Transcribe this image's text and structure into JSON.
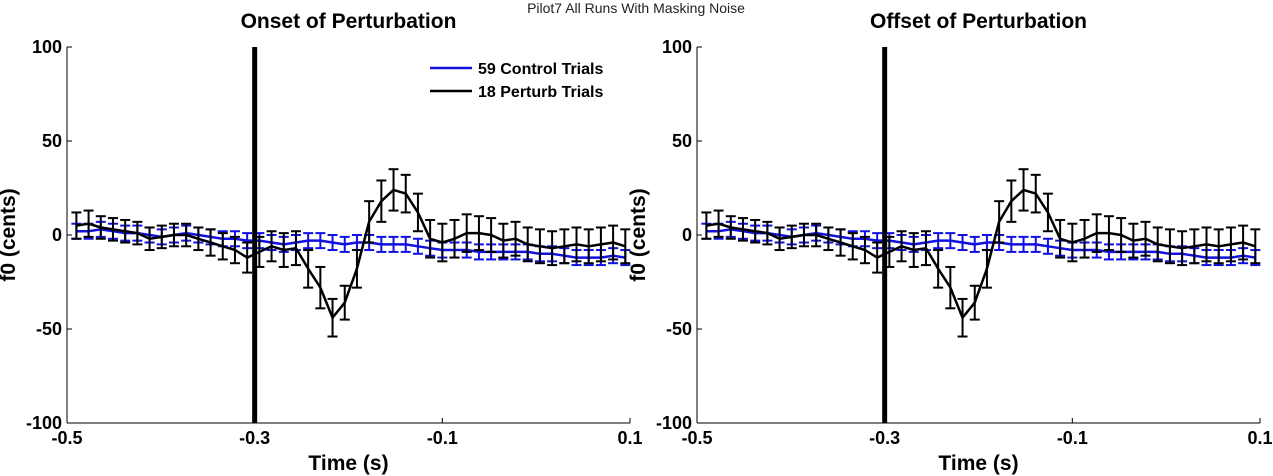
{
  "figure_title": "Pilot7 All Runs With Masking Noise",
  "colors": {
    "control": "#1010e0",
    "perturb": "#000000",
    "marker_line": "#000000",
    "axis": "#000000"
  },
  "chart_data": [
    {
      "type": "line",
      "title": "Onset of Perturbation",
      "xlabel": "Time (s)",
      "ylabel": "f0 (cents)",
      "xlim": [
        -0.5,
        0.1
      ],
      "ylim": [
        -100,
        100
      ],
      "xticks": [
        -0.5,
        -0.3,
        -0.1,
        0.1
      ],
      "xtick_labels": [
        "-0.5",
        "-0.3",
        "-0.1",
        "0.1"
      ],
      "yticks": [
        -100,
        -50,
        0,
        50,
        100
      ],
      "ytick_labels": [
        "-100",
        "-50",
        "0",
        "50",
        "100"
      ],
      "vline_x": -0.3,
      "legend_position": "top-right",
      "grid": false,
      "x": [
        -0.49,
        -0.477,
        -0.464,
        -0.451,
        -0.438,
        -0.425,
        -0.412,
        -0.399,
        -0.386,
        -0.373,
        -0.36,
        -0.347,
        -0.334,
        -0.321,
        -0.308,
        -0.295,
        -0.282,
        -0.269,
        -0.256,
        -0.243,
        -0.23,
        -0.217,
        -0.204,
        -0.191,
        -0.178,
        -0.165,
        -0.152,
        -0.139,
        -0.126,
        -0.113,
        -0.1,
        -0.087,
        -0.074,
        -0.061,
        -0.048,
        -0.035,
        -0.022,
        -0.009,
        0.004,
        0.017,
        0.03,
        0.043,
        0.056,
        0.069,
        0.082,
        0.095
      ],
      "series": [
        {
          "name": "59 Control Trials",
          "color": "#1010e0",
          "values": [
            2,
            2,
            3,
            2,
            1,
            1,
            0,
            -1,
            0,
            1,
            0,
            -1,
            -2,
            -2,
            -3,
            -3,
            -4,
            -5,
            -4,
            -3,
            -3,
            -4,
            -5,
            -4,
            -4,
            -5,
            -5,
            -5,
            -6,
            -7,
            -8,
            -8,
            -8,
            -9,
            -9,
            -9,
            -9,
            -9,
            -10,
            -10,
            -11,
            -12,
            -12,
            -12,
            -11,
            -12
          ],
          "errors": [
            4,
            4,
            4,
            4,
            4,
            4,
            4,
            4,
            4,
            4,
            4,
            4,
            4,
            4,
            4,
            4,
            4,
            4,
            4,
            4,
            4,
            4,
            4,
            4,
            4,
            4,
            4,
            4,
            4,
            4,
            4,
            4,
            4,
            4,
            4,
            4,
            4,
            4,
            4,
            4,
            4,
            4,
            4,
            4,
            4,
            4
          ]
        },
        {
          "name": "18 Perturb Trials",
          "color": "#000000",
          "values": [
            5,
            6,
            4,
            3,
            2,
            1,
            -2,
            -1,
            0,
            0,
            -2,
            -4,
            -6,
            -8,
            -12,
            -9,
            -6,
            -8,
            -7,
            -18,
            -28,
            -44,
            -36,
            -18,
            7,
            18,
            24,
            22,
            12,
            -2,
            -4,
            -2,
            1,
            1,
            0,
            -3,
            -2,
            -5,
            -6,
            -7,
            -6,
            -5,
            -6,
            -5,
            -4,
            -6
          ],
          "errors": [
            7,
            7,
            6,
            6,
            6,
            6,
            6,
            6,
            6,
            6,
            6,
            7,
            7,
            7,
            8,
            8,
            8,
            9,
            9,
            10,
            11,
            10,
            9,
            10,
            11,
            11,
            11,
            10,
            10,
            10,
            10,
            10,
            10,
            9,
            9,
            9,
            9,
            9,
            9,
            9,
            9,
            9,
            9,
            9,
            9,
            9
          ]
        }
      ]
    },
    {
      "type": "line",
      "title": "Offset of Perturbation",
      "xlabel": "Time (s)",
      "ylabel": "f0 (cents)",
      "xlim": [
        -0.5,
        0.1
      ],
      "ylim": [
        -100,
        100
      ],
      "xticks": [
        -0.5,
        -0.3,
        -0.1,
        0.1
      ],
      "xtick_labels": [
        "-0.5",
        "-0.3",
        "-0.1",
        "0.1"
      ],
      "yticks": [
        -100,
        -50,
        0,
        50,
        100
      ],
      "ytick_labels": [
        "-100",
        "-50",
        "0",
        "50",
        "100"
      ],
      "vline_x": -0.3,
      "grid": false,
      "x": [
        -0.49,
        -0.477,
        -0.464,
        -0.451,
        -0.438,
        -0.425,
        -0.412,
        -0.399,
        -0.386,
        -0.373,
        -0.36,
        -0.347,
        -0.334,
        -0.321,
        -0.308,
        -0.295,
        -0.282,
        -0.269,
        -0.256,
        -0.243,
        -0.23,
        -0.217,
        -0.204,
        -0.191,
        -0.178,
        -0.165,
        -0.152,
        -0.139,
        -0.126,
        -0.113,
        -0.1,
        -0.087,
        -0.074,
        -0.061,
        -0.048,
        -0.035,
        -0.022,
        -0.009,
        0.004,
        0.017,
        0.03,
        0.043,
        0.056,
        0.069,
        0.082,
        0.095
      ],
      "series": [
        {
          "name": "59 Control Trials",
          "color": "#1010e0",
          "values": [
            2,
            2,
            3,
            2,
            1,
            1,
            0,
            -1,
            0,
            1,
            0,
            -1,
            -2,
            -2,
            -3,
            -3,
            -4,
            -5,
            -4,
            -3,
            -3,
            -4,
            -5,
            -4,
            -4,
            -5,
            -5,
            -5,
            -6,
            -7,
            -8,
            -8,
            -8,
            -9,
            -9,
            -9,
            -9,
            -9,
            -10,
            -10,
            -11,
            -12,
            -12,
            -12,
            -11,
            -12
          ],
          "errors": [
            4,
            4,
            4,
            4,
            4,
            4,
            4,
            4,
            4,
            4,
            4,
            4,
            4,
            4,
            4,
            4,
            4,
            4,
            4,
            4,
            4,
            4,
            4,
            4,
            4,
            4,
            4,
            4,
            4,
            4,
            4,
            4,
            4,
            4,
            4,
            4,
            4,
            4,
            4,
            4,
            4,
            4,
            4,
            4,
            4,
            4
          ]
        },
        {
          "name": "18 Perturb Trials",
          "color": "#000000",
          "values": [
            5,
            6,
            4,
            3,
            2,
            1,
            -2,
            -1,
            0,
            0,
            -2,
            -4,
            -6,
            -8,
            -12,
            -9,
            -6,
            -8,
            -7,
            -18,
            -28,
            -44,
            -36,
            -18,
            7,
            18,
            24,
            22,
            12,
            -2,
            -4,
            -2,
            1,
            1,
            0,
            -3,
            -2,
            -5,
            -6,
            -7,
            -6,
            -5,
            -6,
            -5,
            -4,
            -6
          ],
          "errors": [
            7,
            7,
            6,
            6,
            6,
            6,
            6,
            6,
            6,
            6,
            6,
            7,
            7,
            7,
            8,
            8,
            8,
            9,
            9,
            10,
            11,
            10,
            9,
            10,
            11,
            11,
            11,
            10,
            10,
            10,
            10,
            10,
            10,
            9,
            9,
            9,
            9,
            9,
            9,
            9,
            9,
            9,
            9,
            9,
            9,
            9
          ]
        }
      ]
    }
  ]
}
